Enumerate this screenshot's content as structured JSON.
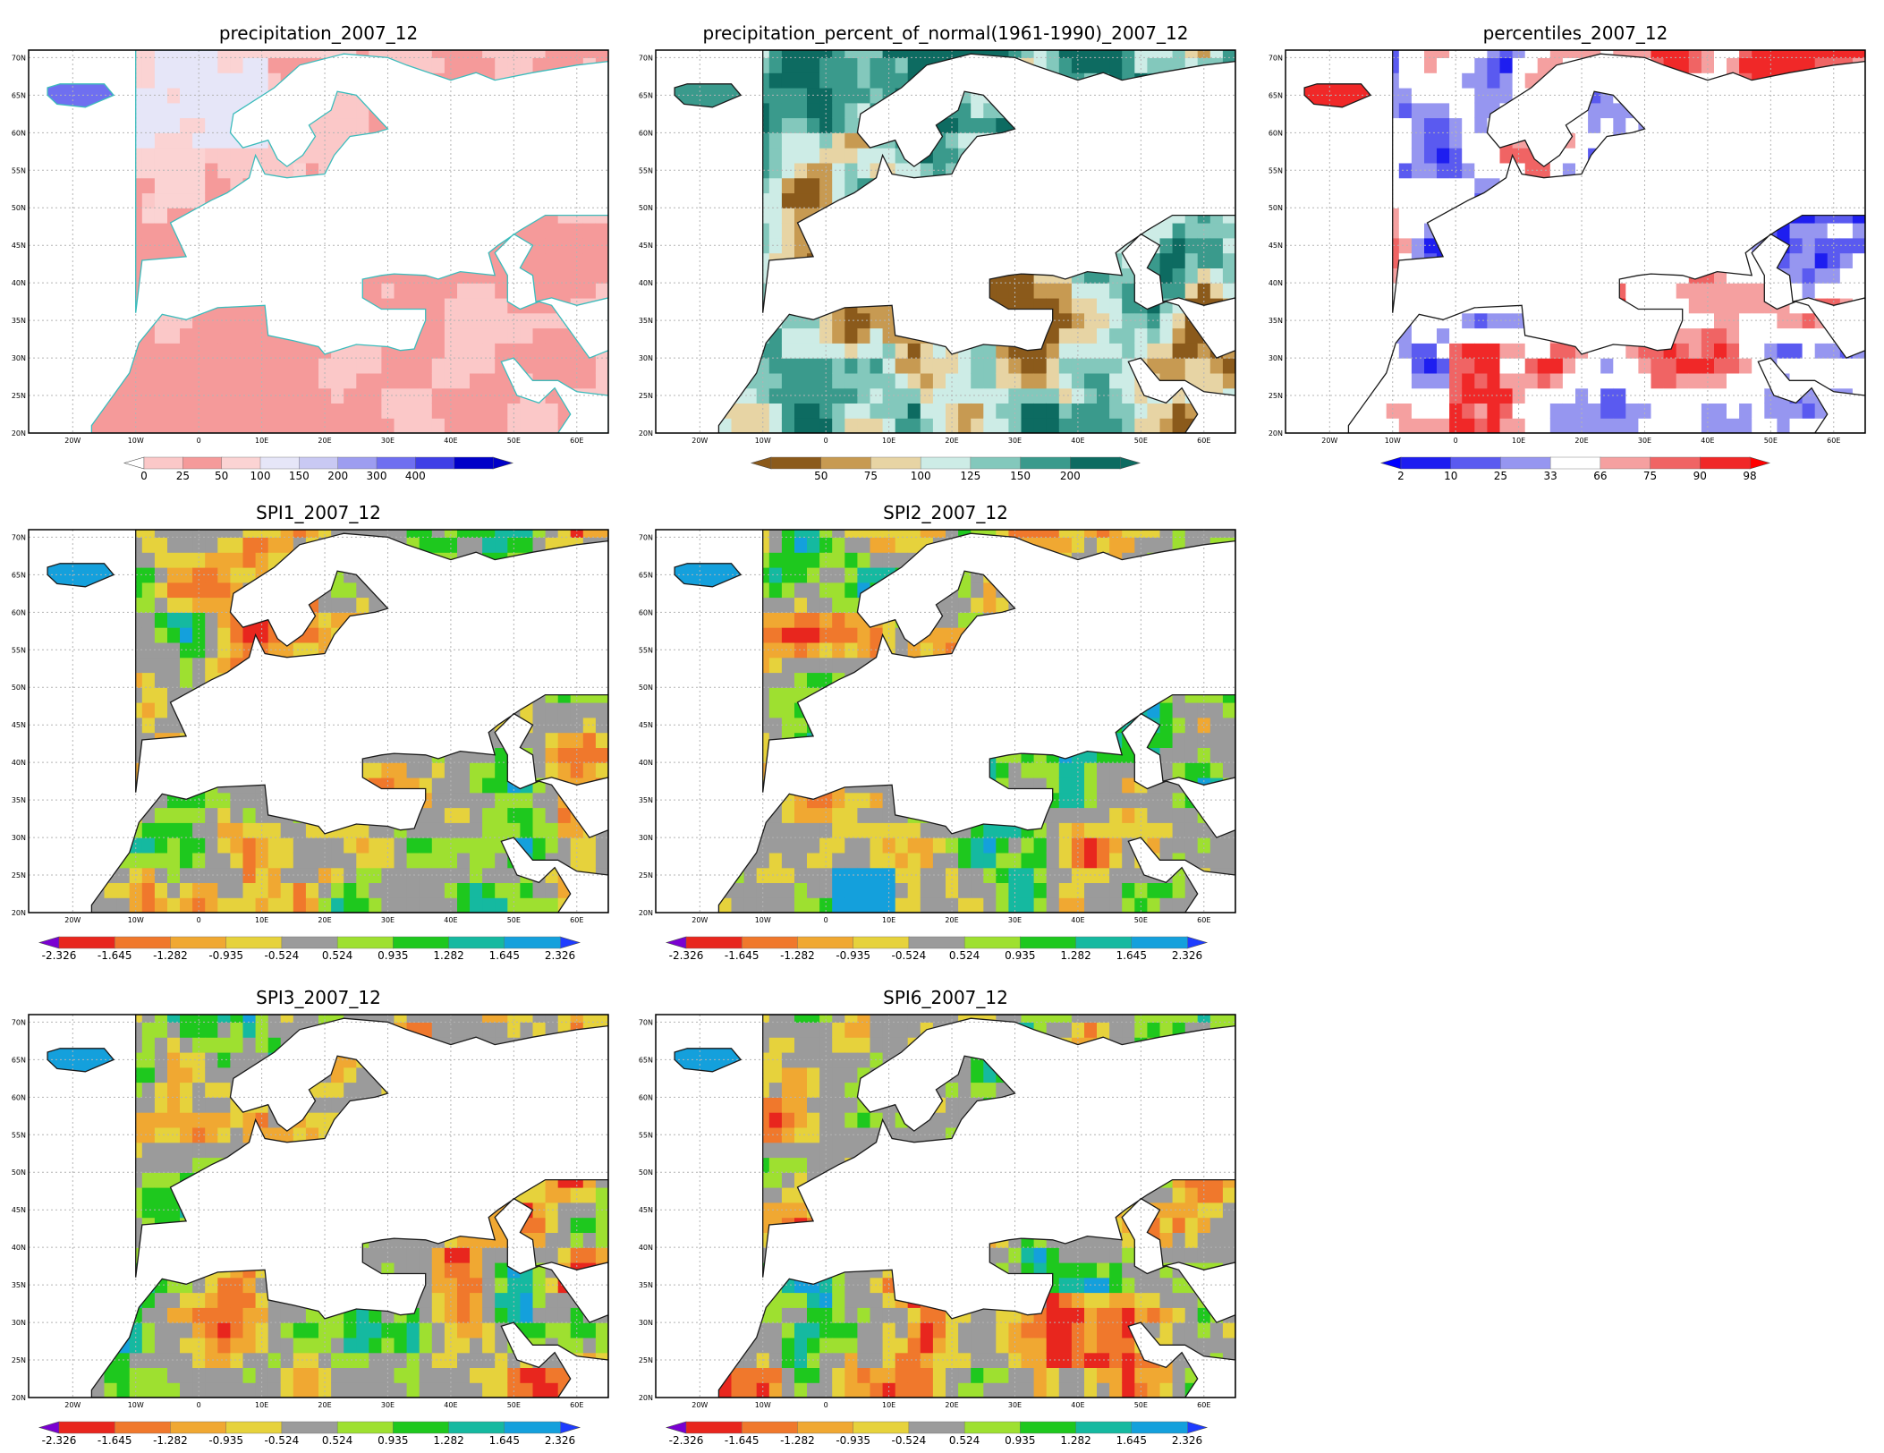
{
  "panels": [
    {
      "id": "precip",
      "title": "precipitation_2007_12",
      "scale": "precip",
      "colorbar": {
        "colors": [
          "#fbc8c8",
          "#f59a9a",
          "#fbd3d3",
          "#e6e6f8",
          "#c9c9f3",
          "#9d9df0",
          "#6f6ff0",
          "#3f3fe6",
          "#0000c8"
        ],
        "labels": [
          "0",
          "25",
          "50",
          "100",
          "150",
          "200",
          "300",
          "400"
        ],
        "left_arrow": "#ffffff",
        "right_arrow": "#0000c8"
      }
    },
    {
      "id": "pctnormal",
      "title": "precipitation_percent_of_normal(1961-1990)_2007_12",
      "scale": "pct",
      "colorbar": {
        "colors": [
          "#8b5a1b",
          "#c79a52",
          "#e7d4a4",
          "#cdece6",
          "#83c8bc",
          "#3a9a8c",
          "#0d6b61"
        ],
        "labels": [
          "50",
          "75",
          "100",
          "125",
          "150",
          "200"
        ],
        "left_arrow": "#8b5a1b",
        "right_arrow": "#0d6b61"
      }
    },
    {
      "id": "percentiles",
      "title": "percentiles_2007_12",
      "scale": "ptile",
      "colorbar": {
        "colors": [
          "#1e1ef0",
          "#5a5af0",
          "#9696f0",
          "#ffffff",
          "#f5a0a0",
          "#f06464",
          "#f02828"
        ],
        "labels": [
          "2",
          "10",
          "25",
          "33",
          "66",
          "75",
          "90",
          "98"
        ],
        "left_arrow": "#0000ff",
        "right_arrow": "#ff0000"
      }
    },
    {
      "id": "spi1",
      "title": "SPI1_2007_12",
      "scale": "spi",
      "colorbar": {
        "colors": [
          "#e8261e",
          "#f0782c",
          "#f0a832",
          "#e6d23c",
          "#9b9b9b",
          "#9ee030",
          "#1ec81e",
          "#15b9a0",
          "#14a0dc"
        ],
        "labels": [
          "-2.326",
          "-1.645",
          "-1.282",
          "-0.935",
          "-0.524",
          "0.524",
          "0.935",
          "1.282",
          "1.645",
          "2.326"
        ],
        "left_arrow": "#7a00d2",
        "right_arrow": "#1e3cff"
      }
    },
    {
      "id": "spi2",
      "title": "SPI2_2007_12",
      "scale": "spi",
      "colorbar": {
        "colors": [
          "#e8261e",
          "#f0782c",
          "#f0a832",
          "#e6d23c",
          "#9b9b9b",
          "#9ee030",
          "#1ec81e",
          "#15b9a0",
          "#14a0dc"
        ],
        "labels": [
          "-2.326",
          "-1.645",
          "-1.282",
          "-0.935",
          "-0.524",
          "0.524",
          "0.935",
          "1.282",
          "1.645",
          "2.326"
        ],
        "left_arrow": "#7a00d2",
        "right_arrow": "#1e3cff"
      }
    },
    {
      "id": "spi3",
      "title": "SPI3_2007_12",
      "scale": "spi",
      "colorbar": {
        "colors": [
          "#e8261e",
          "#f0782c",
          "#f0a832",
          "#e6d23c",
          "#9b9b9b",
          "#9ee030",
          "#1ec81e",
          "#15b9a0",
          "#14a0dc"
        ],
        "labels": [
          "-2.326",
          "-1.645",
          "-1.282",
          "-0.935",
          "-0.524",
          "0.524",
          "0.935",
          "1.282",
          "1.645",
          "2.326"
        ],
        "left_arrow": "#7a00d2",
        "right_arrow": "#1e3cff"
      }
    },
    {
      "id": "spi6",
      "title": "SPI6_2007_12",
      "scale": "spi",
      "colorbar": {
        "colors": [
          "#e8261e",
          "#f0782c",
          "#f0a832",
          "#e6d23c",
          "#9b9b9b",
          "#9ee030",
          "#1ec81e",
          "#15b9a0",
          "#14a0dc"
        ],
        "labels": [
          "-2.326",
          "-1.645",
          "-1.282",
          "-0.935",
          "-0.524",
          "0.524",
          "0.935",
          "1.282",
          "1.645",
          "2.326"
        ],
        "left_arrow": "#7a00d2",
        "right_arrow": "#1e3cff"
      }
    }
  ],
  "map_axes": {
    "lat_labels": [
      "70N",
      "65N",
      "60N",
      "55N",
      "50N",
      "45N",
      "40N",
      "35N",
      "30N",
      "25N",
      "20N"
    ],
    "lon_labels": [
      "20W",
      "10W",
      "0",
      "10E",
      "20E",
      "30E",
      "40E",
      "50E",
      "60E"
    ]
  },
  "colors": {
    "coast_precip": "#3cbcbc",
    "coast_default": "#1a1a1a",
    "grid": "#b4b4b4"
  }
}
